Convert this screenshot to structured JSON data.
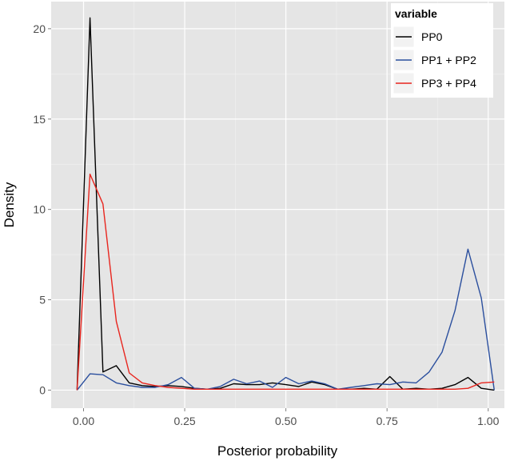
{
  "chart_data": {
    "type": "line",
    "xlabel": "Posterior probability",
    "ylabel": "Density",
    "xlim": [
      -0.08,
      1.04
    ],
    "ylim": [
      -1.0,
      21.5
    ],
    "x_ticks": [
      0.0,
      0.25,
      0.5,
      0.75,
      1.0
    ],
    "x_tick_labels": [
      "0.00",
      "0.25",
      "0.50",
      "0.75",
      "1.00"
    ],
    "y_ticks": [
      0,
      5,
      10,
      15,
      20
    ],
    "y_tick_labels": [
      "0",
      "5",
      "10",
      "15",
      "20"
    ],
    "grid": true,
    "background": "#e5e5e5",
    "legend": {
      "title": "variable",
      "position": "top-right"
    },
    "series": [
      {
        "name": "PP0",
        "color": "#000000",
        "x": [
          -0.016,
          0.016,
          0.048,
          0.081,
          0.113,
          0.145,
          0.177,
          0.209,
          0.242,
          0.274,
          0.306,
          0.338,
          0.371,
          0.403,
          0.435,
          0.467,
          0.5,
          0.532,
          0.564,
          0.596,
          0.628,
          0.661,
          0.693,
          0.725,
          0.757,
          0.789,
          0.822,
          0.854,
          0.886,
          0.918,
          0.95,
          0.983,
          1.015
        ],
        "y": [
          0.0,
          20.6,
          1.0,
          1.35,
          0.4,
          0.25,
          0.2,
          0.25,
          0.2,
          0.1,
          0.05,
          0.1,
          0.35,
          0.3,
          0.3,
          0.4,
          0.3,
          0.2,
          0.45,
          0.3,
          0.05,
          0.05,
          0.1,
          0.05,
          0.75,
          0.05,
          0.1,
          0.05,
          0.1,
          0.3,
          0.7,
          0.1,
          0.0
        ]
      },
      {
        "name": "PP1 + PP2",
        "color": "#2b4f9e",
        "x": [
          -0.016,
          0.016,
          0.048,
          0.081,
          0.113,
          0.145,
          0.177,
          0.209,
          0.242,
          0.274,
          0.306,
          0.338,
          0.371,
          0.403,
          0.435,
          0.467,
          0.5,
          0.532,
          0.564,
          0.596,
          0.628,
          0.661,
          0.693,
          0.725,
          0.757,
          0.789,
          0.822,
          0.854,
          0.886,
          0.918,
          0.95,
          0.983,
          1.015
        ],
        "y": [
          0.0,
          0.9,
          0.85,
          0.4,
          0.25,
          0.15,
          0.15,
          0.3,
          0.7,
          0.1,
          0.05,
          0.2,
          0.6,
          0.35,
          0.5,
          0.15,
          0.7,
          0.35,
          0.5,
          0.35,
          0.05,
          0.15,
          0.25,
          0.35,
          0.3,
          0.45,
          0.4,
          1.0,
          2.1,
          4.4,
          7.8,
          5.1,
          0.0
        ]
      },
      {
        "name": "PP3 + PP4",
        "color": "#e8251e",
        "x": [
          -0.016,
          0.016,
          0.048,
          0.081,
          0.113,
          0.145,
          0.177,
          0.209,
          0.242,
          0.274,
          0.306,
          0.338,
          0.371,
          0.403,
          0.435,
          0.467,
          0.5,
          0.532,
          0.564,
          0.596,
          0.628,
          0.661,
          0.693,
          0.725,
          0.757,
          0.789,
          0.822,
          0.854,
          0.886,
          0.918,
          0.95,
          0.983,
          1.015
        ],
        "y": [
          0.0,
          11.95,
          10.3,
          3.8,
          0.95,
          0.4,
          0.25,
          0.15,
          0.1,
          0.05,
          0.05,
          0.05,
          0.05,
          0.05,
          0.05,
          0.05,
          0.05,
          0.05,
          0.05,
          0.05,
          0.05,
          0.05,
          0.05,
          0.05,
          0.05,
          0.05,
          0.05,
          0.05,
          0.05,
          0.05,
          0.1,
          0.4,
          0.45
        ]
      }
    ]
  }
}
